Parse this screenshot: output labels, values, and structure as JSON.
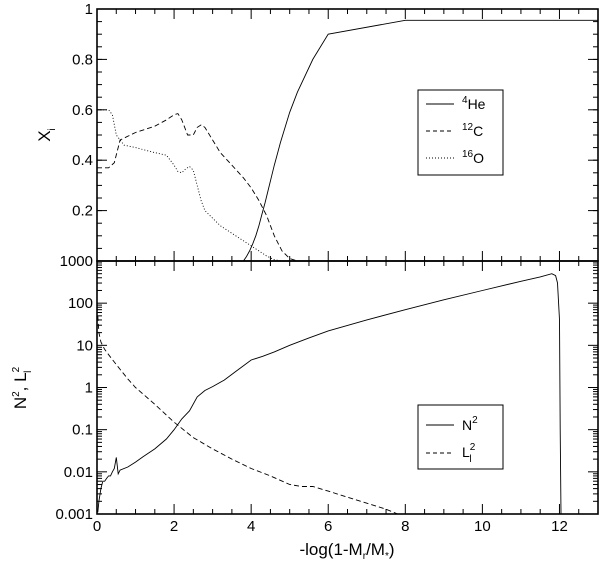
{
  "chart_data": [
    {
      "type": "line",
      "panel": "top",
      "xlim": [
        0,
        13
      ],
      "ylim": [
        0,
        1
      ],
      "ylabel": "X",
      "ylabel_sub": "i",
      "yticks": [
        0,
        0.2,
        0.4,
        0.6,
        0.8,
        1
      ],
      "ytick_labels": [
        "",
        "0.2",
        "0.4",
        "0.6",
        "0.8",
        "1"
      ],
      "legend_position": "center-right",
      "series": [
        {
          "name": "4He",
          "name_sup": "4",
          "name_base": "He",
          "dash": "solid",
          "x": [
            0,
            3.8,
            3.88,
            3.96,
            4.04,
            4.12,
            4.2,
            4.28,
            4.36,
            4.44,
            4.52,
            4.6,
            4.68,
            4.76,
            4.84,
            4.92,
            5.0,
            5.2,
            5.6,
            6,
            8,
            10,
            12,
            13
          ],
          "y": [
            0,
            0.0,
            0.018,
            0.04,
            0.068,
            0.1,
            0.14,
            0.185,
            0.23,
            0.28,
            0.33,
            0.38,
            0.425,
            0.47,
            0.51,
            0.55,
            0.59,
            0.67,
            0.8,
            0.9,
            0.955,
            0.955,
            0.955,
            0.955
          ]
        },
        {
          "name": "12C",
          "name_sup": "12",
          "name_base": "C",
          "dash": "dashed",
          "x": [
            0,
            0.3,
            0.45,
            0.6,
            1.0,
            1.5,
            1.8,
            2.0,
            2.1,
            2.2,
            2.35,
            2.5,
            2.6,
            2.7,
            2.8,
            3.0,
            3.2,
            3.5,
            3.8,
            4.0,
            4.2,
            4.4,
            4.6,
            4.8,
            5.0,
            5.2
          ],
          "y": [
            0.37,
            0.37,
            0.39,
            0.48,
            0.51,
            0.535,
            0.56,
            0.58,
            0.585,
            0.56,
            0.5,
            0.5,
            0.53,
            0.54,
            0.53,
            0.48,
            0.43,
            0.38,
            0.33,
            0.29,
            0.24,
            0.18,
            0.1,
            0.04,
            0.01,
            0.0
          ]
        },
        {
          "name": "16O",
          "name_sup": "16",
          "name_base": "O",
          "dash": "dotted",
          "x": [
            0,
            0.3,
            0.4,
            0.5,
            0.7,
            1.0,
            1.5,
            1.8,
            2.0,
            2.1,
            2.2,
            2.3,
            2.4,
            2.5,
            2.6,
            2.7,
            2.8,
            3.0,
            3.2,
            3.5,
            3.8,
            4.0,
            4.2,
            4.4,
            4.6,
            4.8
          ],
          "y": [
            0.6,
            0.6,
            0.58,
            0.5,
            0.46,
            0.45,
            0.43,
            0.42,
            0.38,
            0.355,
            0.35,
            0.365,
            0.375,
            0.36,
            0.3,
            0.24,
            0.2,
            0.17,
            0.14,
            0.11,
            0.08,
            0.06,
            0.04,
            0.02,
            0.005,
            0.0
          ]
        }
      ]
    },
    {
      "type": "line",
      "panel": "bottom",
      "xlim": [
        0,
        13
      ],
      "ylim": [
        0.001,
        1000
      ],
      "yscale": "log",
      "xlabel": "-log(1-M",
      "xlabel_sub1": "r",
      "xlabel_mid": "/M",
      "xlabel_sub2": "*",
      "xlabel_end": ")",
      "ylabel": "N",
      "ylabel_sup1": "2",
      "ylabel_mid": ", L",
      "ylabel_sup2": "2",
      "ylabel_sub2": "l",
      "xticks": [
        0,
        2,
        4,
        6,
        8,
        10,
        12
      ],
      "xtick_labels": [
        "0",
        "2",
        "4",
        "6",
        "8",
        "10",
        "12"
      ],
      "yticks": [
        0.001,
        0.01,
        0.1,
        1,
        10,
        100,
        1000
      ],
      "ytick_labels": [
        "0.001",
        "0.01",
        "0.1",
        "1",
        "10",
        "100",
        "1000"
      ],
      "legend_position": "lower-right",
      "series": [
        {
          "name": "N2",
          "name_base": "N",
          "name_sup": "2",
          "dash": "solid",
          "x": [
            0.02,
            0.05,
            0.1,
            0.15,
            0.2,
            0.25,
            0.3,
            0.35,
            0.4,
            0.45,
            0.5,
            0.55,
            0.6,
            0.8,
            1.0,
            1.2,
            1.5,
            1.8,
            2.0,
            2.2,
            2.4,
            2.6,
            2.8,
            3.0,
            3.3,
            3.6,
            4.0,
            4.3,
            4.6,
            5.0,
            5.5,
            6,
            7,
            8,
            9,
            10,
            11,
            11.5,
            11.8,
            11.9,
            11.95,
            12.0,
            12.02,
            12.04
          ],
          "y": [
            0.0011,
            0.002,
            0.004,
            0.006,
            0.006,
            0.007,
            0.008,
            0.008,
            0.01,
            0.012,
            0.022,
            0.009,
            0.011,
            0.013,
            0.017,
            0.023,
            0.035,
            0.06,
            0.1,
            0.18,
            0.28,
            0.6,
            0.85,
            1.05,
            1.5,
            2.4,
            4.5,
            5.5,
            7,
            10,
            15,
            22,
            40,
            70,
            120,
            200,
            330,
            420,
            500,
            450,
            300,
            40,
            0.1,
            0.001
          ]
        },
        {
          "name": "L2l",
          "name_base": "L",
          "name_sup": "2",
          "name_sub": "l",
          "dash": "dashed",
          "x": [
            0.02,
            0.05,
            0.1,
            0.2,
            0.3,
            0.5,
            0.8,
            1.0,
            1.5,
            2.0,
            2.5,
            3.0,
            3.5,
            4.0,
            4.5,
            5.0,
            5.3,
            5.6,
            6.0,
            6.5,
            7.0,
            7.5,
            7.8
          ],
          "y": [
            50,
            20,
            12,
            8,
            6,
            3.5,
            1.6,
            1.0,
            0.4,
            0.15,
            0.065,
            0.035,
            0.02,
            0.012,
            0.008,
            0.005,
            0.0045,
            0.0045,
            0.0035,
            0.0025,
            0.0018,
            0.0013,
            0.001
          ]
        }
      ]
    }
  ]
}
